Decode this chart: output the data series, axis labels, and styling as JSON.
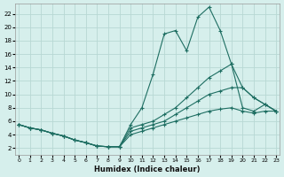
{
  "title": "",
  "xlabel": "Humidex (Indice chaleur)",
  "ylabel": "",
  "bg_color": "#d6efec",
  "grid_color": "#b8d8d4",
  "line_color": "#1e6e62",
  "x_ticks": [
    0,
    1,
    2,
    3,
    4,
    5,
    6,
    7,
    8,
    9,
    10,
    11,
    12,
    13,
    14,
    15,
    16,
    17,
    18,
    19,
    20,
    21,
    22,
    23
  ],
  "y_ticks": [
    2,
    4,
    6,
    8,
    10,
    12,
    14,
    16,
    18,
    20,
    22
  ],
  "xlim": [
    -0.3,
    23.3
  ],
  "ylim": [
    1.0,
    23.5
  ],
  "series": [
    {
      "x": [
        0,
        1,
        2,
        3,
        4,
        5,
        6,
        7,
        8,
        9,
        10,
        11,
        12,
        13,
        14,
        15,
        16,
        17,
        18,
        19,
        20,
        21,
        22,
        23
      ],
      "y": [
        5.5,
        5.0,
        4.7,
        4.2,
        3.8,
        3.2,
        2.8,
        2.3,
        2.2,
        2.2,
        5.5,
        8.0,
        13.0,
        19.0,
        19.5,
        16.5,
        21.5,
        23.0,
        19.5,
        14.5,
        11.0,
        9.5,
        8.5,
        7.5
      ]
    },
    {
      "x": [
        0,
        1,
        2,
        3,
        4,
        5,
        6,
        7,
        8,
        9,
        10,
        11,
        12,
        13,
        14,
        15,
        16,
        17,
        18,
        19,
        20,
        21,
        22,
        23
      ],
      "y": [
        5.5,
        5.0,
        4.7,
        4.2,
        3.8,
        3.2,
        2.8,
        2.3,
        2.2,
        2.2,
        5.0,
        5.5,
        6.0,
        7.0,
        8.0,
        9.5,
        11.0,
        12.5,
        13.5,
        14.5,
        8.0,
        7.5,
        8.5,
        7.5
      ]
    },
    {
      "x": [
        0,
        1,
        2,
        3,
        4,
        5,
        6,
        7,
        8,
        9,
        10,
        11,
        12,
        13,
        14,
        15,
        16,
        17,
        18,
        19,
        20,
        21,
        22,
        23
      ],
      "y": [
        5.5,
        5.0,
        4.7,
        4.2,
        3.8,
        3.2,
        2.8,
        2.3,
        2.2,
        2.2,
        4.5,
        5.0,
        5.5,
        6.0,
        7.0,
        8.0,
        9.0,
        10.0,
        10.5,
        11.0,
        11.0,
        9.5,
        8.5,
        7.5
      ]
    },
    {
      "x": [
        0,
        1,
        2,
        3,
        4,
        5,
        6,
        7,
        8,
        9,
        10,
        11,
        12,
        13,
        14,
        15,
        16,
        17,
        18,
        19,
        20,
        21,
        22,
        23
      ],
      "y": [
        5.5,
        5.0,
        4.7,
        4.2,
        3.8,
        3.2,
        2.8,
        2.3,
        2.2,
        2.2,
        4.0,
        4.5,
        5.0,
        5.5,
        6.0,
        6.5,
        7.0,
        7.5,
        7.8,
        8.0,
        7.5,
        7.2,
        7.5,
        7.5
      ]
    }
  ]
}
